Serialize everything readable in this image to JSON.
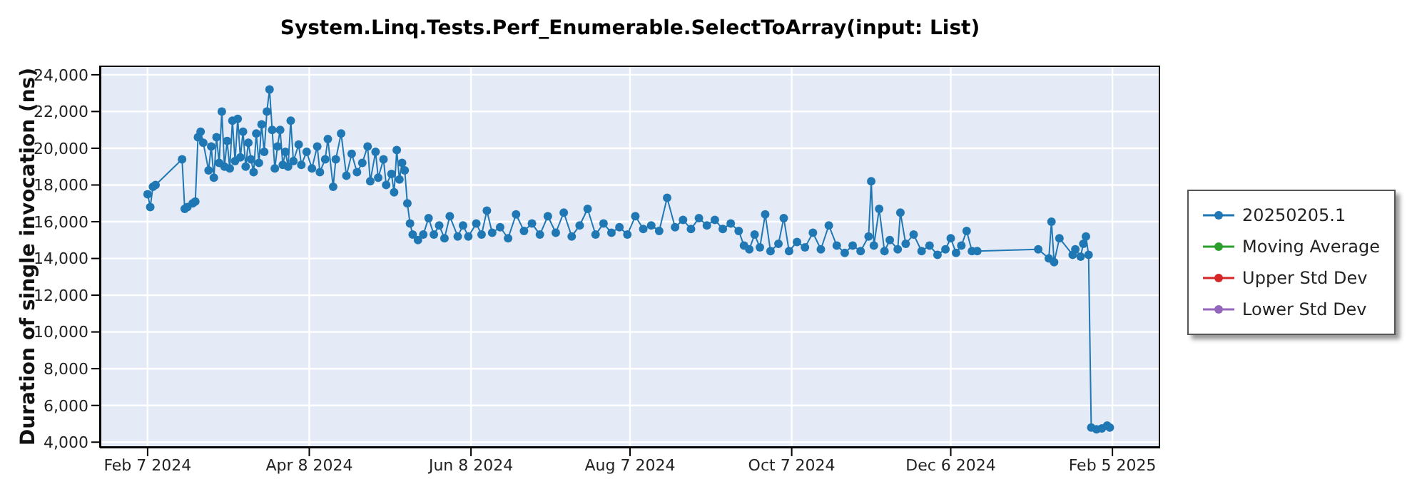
{
  "chart_data": {
    "type": "line",
    "title": "System.Linq.Tests.Perf_Enumerable.SelectToArray(input: List)",
    "ylabel": "Duration of single invocation (ns)",
    "x": [
      "2024-02-07",
      "2024-02-08",
      "2024-02-09",
      "2024-02-10",
      "2024-02-20",
      "2024-02-21",
      "2024-02-22",
      "2024-02-24",
      "2024-02-25",
      "2024-02-26",
      "2024-02-27",
      "2024-02-28",
      "2024-03-01",
      "2024-03-02",
      "2024-03-03",
      "2024-03-04",
      "2024-03-05",
      "2024-03-06",
      "2024-03-07",
      "2024-03-08",
      "2024-03-09",
      "2024-03-10",
      "2024-03-11",
      "2024-03-12",
      "2024-03-13",
      "2024-03-14",
      "2024-03-15",
      "2024-03-16",
      "2024-03-17",
      "2024-03-18",
      "2024-03-19",
      "2024-03-20",
      "2024-03-21",
      "2024-03-22",
      "2024-03-23",
      "2024-03-24",
      "2024-03-25",
      "2024-03-26",
      "2024-03-27",
      "2024-03-28",
      "2024-03-29",
      "2024-03-30",
      "2024-03-31",
      "2024-04-01",
      "2024-04-02",
      "2024-04-04",
      "2024-04-05",
      "2024-04-07",
      "2024-04-09",
      "2024-04-11",
      "2024-04-12",
      "2024-04-14",
      "2024-04-15",
      "2024-04-17",
      "2024-04-18",
      "2024-04-20",
      "2024-04-22",
      "2024-04-24",
      "2024-04-26",
      "2024-04-28",
      "2024-04-30",
      "2024-05-01",
      "2024-05-03",
      "2024-05-04",
      "2024-05-06",
      "2024-05-07",
      "2024-05-09",
      "2024-05-10",
      "2024-05-11",
      "2024-05-12",
      "2024-05-13",
      "2024-05-14",
      "2024-05-15",
      "2024-05-16",
      "2024-05-17",
      "2024-05-19",
      "2024-05-21",
      "2024-05-23",
      "2024-05-25",
      "2024-05-27",
      "2024-05-29",
      "2024-05-31",
      "2024-06-03",
      "2024-06-05",
      "2024-06-07",
      "2024-06-10",
      "2024-06-12",
      "2024-06-14",
      "2024-06-16",
      "2024-06-19",
      "2024-06-22",
      "2024-06-25",
      "2024-06-28",
      "2024-07-01",
      "2024-07-04",
      "2024-07-07",
      "2024-07-10",
      "2024-07-13",
      "2024-07-16",
      "2024-07-19",
      "2024-07-22",
      "2024-07-25",
      "2024-07-28",
      "2024-07-31",
      "2024-08-03",
      "2024-08-06",
      "2024-08-09",
      "2024-08-12",
      "2024-08-15",
      "2024-08-18",
      "2024-08-21",
      "2024-08-24",
      "2024-08-27",
      "2024-08-30",
      "2024-09-02",
      "2024-09-05",
      "2024-09-08",
      "2024-09-11",
      "2024-09-14",
      "2024-09-17",
      "2024-09-19",
      "2024-09-21",
      "2024-09-23",
      "2024-09-25",
      "2024-09-27",
      "2024-09-29",
      "2024-10-02",
      "2024-10-04",
      "2024-10-06",
      "2024-10-09",
      "2024-10-12",
      "2024-10-15",
      "2024-10-18",
      "2024-10-21",
      "2024-10-24",
      "2024-10-27",
      "2024-10-30",
      "2024-11-02",
      "2024-11-05",
      "2024-11-06",
      "2024-11-07",
      "2024-11-09",
      "2024-11-11",
      "2024-11-13",
      "2024-11-16",
      "2024-11-17",
      "2024-11-19",
      "2024-11-22",
      "2024-11-25",
      "2024-11-28",
      "2024-12-01",
      "2024-12-04",
      "2024-12-06",
      "2024-12-08",
      "2024-12-10",
      "2024-12-12",
      "2024-12-14",
      "2024-12-16",
      "2025-01-08",
      "2025-01-12",
      "2025-01-13",
      "2025-01-14",
      "2025-01-16",
      "2025-01-21",
      "2025-01-22",
      "2025-01-24",
      "2025-01-25",
      "2025-01-26",
      "2025-01-27",
      "2025-01-28",
      "2025-01-30",
      "2025-02-01",
      "2025-02-03",
      "2025-02-04"
    ],
    "series": [
      {
        "name": "20250205.1",
        "color": "#1f77b4",
        "values": [
          17500,
          16800,
          17900,
          18000,
          19400,
          16700,
          16800,
          17000,
          17100,
          20600,
          20900,
          20300,
          18800,
          20100,
          18400,
          20600,
          19200,
          22000,
          19000,
          20400,
          18900,
          21500,
          19300,
          21600,
          19500,
          20900,
          19000,
          20300,
          19400,
          18700,
          20800,
          19200,
          21300,
          19800,
          22000,
          23200,
          21000,
          18900,
          20100,
          21000,
          19100,
          19800,
          19000,
          21500,
          19300,
          20200,
          19100,
          19800,
          18900,
          20100,
          18700,
          19400,
          20500,
          17900,
          19400,
          20800,
          18500,
          19700,
          18700,
          19200,
          20100,
          18200,
          19800,
          18400,
          19400,
          18000,
          18600,
          17600,
          19900,
          18300,
          19200,
          18800,
          17000,
          15900,
          15300,
          15000,
          15300,
          16200,
          15300,
          15800,
          15100,
          16300,
          15200,
          15800,
          15200,
          15900,
          15300,
          16600,
          15400,
          15700,
          15100,
          16400,
          15500,
          15900,
          15300,
          16300,
          15400,
          16500,
          15200,
          15800,
          16700,
          15300,
          15900,
          15400,
          15700,
          15300,
          16300,
          15600,
          15800,
          15500,
          17300,
          15700,
          16100,
          15600,
          16200,
          15800,
          16100,
          15600,
          15900,
          15500,
          14700,
          14500,
          15300,
          14600,
          16400,
          14400,
          14800,
          16200,
          14400,
          14900,
          14600,
          15400,
          14500,
          15800,
          14700,
          14300,
          14700,
          14400,
          15200,
          18200,
          14700,
          16700,
          14400,
          15000,
          14500,
          16500,
          14800,
          15300,
          14400,
          14700,
          14200,
          14500,
          15100,
          14300,
          14700,
          15500,
          14400,
          14400,
          14500,
          14000,
          16000,
          13800,
          15100,
          14200,
          14500,
          14100,
          14800,
          15200,
          14200,
          4800,
          4700,
          4750,
          4900,
          4800
        ]
      },
      {
        "name": "Moving Average",
        "color": "#2ca02c",
        "values": [
          null,
          null,
          null,
          null,
          null,
          null,
          null,
          null,
          null,
          null,
          null,
          null,
          null,
          null,
          null,
          null,
          null,
          null,
          null,
          null,
          null,
          null,
          null,
          null,
          null,
          null,
          null,
          null,
          null,
          null,
          null,
          null,
          null,
          null,
          null,
          null,
          null,
          null,
          null,
          null,
          null,
          null,
          null,
          null,
          null,
          null,
          null,
          null,
          null,
          null,
          null,
          null,
          null,
          null,
          null,
          null,
          null,
          null,
          null,
          null,
          null,
          null,
          null,
          null,
          null,
          null,
          null,
          null,
          null,
          null,
          null,
          null,
          null,
          null,
          null,
          null,
          null,
          null,
          null,
          null,
          null,
          null,
          null,
          null,
          null,
          null,
          null,
          null,
          null,
          null,
          null,
          null,
          null,
          null,
          null,
          null,
          null,
          null,
          null,
          null,
          null,
          null,
          null,
          null,
          null,
          null,
          null,
          null,
          null,
          null,
          null,
          null,
          null,
          null,
          null,
          null,
          null,
          null,
          null,
          null,
          null,
          null,
          null,
          null,
          null,
          null,
          null,
          null,
          null,
          null,
          null,
          null,
          null,
          null,
          null,
          null,
          null,
          null,
          null,
          null,
          null,
          null,
          null,
          null,
          null,
          null,
          null,
          null,
          null,
          null,
          null,
          null,
          null,
          null,
          null,
          null,
          null,
          null,
          null,
          null,
          null,
          null,
          null,
          null,
          null,
          null,
          null,
          null,
          null,
          null,
          null,
          null,
          null,
          null
        ]
      },
      {
        "name": "Upper Std Dev",
        "color": "#d62728",
        "values": [
          null,
          null,
          null,
          null,
          null,
          null,
          null,
          null,
          null,
          null,
          null,
          null,
          null,
          null,
          null,
          null,
          null,
          null,
          null,
          null,
          null,
          null,
          null,
          null,
          null,
          null,
          null,
          null,
          null,
          null,
          null,
          null,
          null,
          null,
          null,
          null,
          null,
          null,
          null,
          null,
          null,
          null,
          null,
          null,
          null,
          null,
          null,
          null,
          null,
          null,
          null,
          null,
          null,
          null,
          null,
          null,
          null,
          null,
          null,
          null,
          null,
          null,
          null,
          null,
          null,
          null,
          null,
          null,
          null,
          null,
          null,
          null,
          null,
          null,
          null,
          null,
          null,
          null,
          null,
          null,
          null,
          null,
          null,
          null,
          null,
          null,
          null,
          null,
          null,
          null,
          null,
          null,
          null,
          null,
          null,
          null,
          null,
          null,
          null,
          null,
          null,
          null,
          null,
          null,
          null,
          null,
          null,
          null,
          null,
          null,
          null,
          null,
          null,
          null,
          null,
          null,
          null,
          null,
          null,
          null,
          null,
          null,
          null,
          null,
          null,
          null,
          null,
          null,
          null,
          null,
          null,
          null,
          null,
          null,
          null,
          null,
          null,
          null,
          null,
          null,
          null,
          null,
          null,
          null,
          null,
          null,
          null,
          null,
          null,
          null,
          null,
          null,
          null,
          null,
          null,
          null,
          null,
          null,
          null,
          null,
          null,
          null,
          null,
          null,
          null,
          null,
          null,
          null,
          null,
          null,
          null,
          null,
          null,
          null
        ]
      },
      {
        "name": "Lower Std Dev",
        "color": "#9467bd",
        "values": [
          null,
          null,
          null,
          null,
          null,
          null,
          null,
          null,
          null,
          null,
          null,
          null,
          null,
          null,
          null,
          null,
          null,
          null,
          null,
          null,
          null,
          null,
          null,
          null,
          null,
          null,
          null,
          null,
          null,
          null,
          null,
          null,
          null,
          null,
          null,
          null,
          null,
          null,
          null,
          null,
          null,
          null,
          null,
          null,
          null,
          null,
          null,
          null,
          null,
          null,
          null,
          null,
          null,
          null,
          null,
          null,
          null,
          null,
          null,
          null,
          null,
          null,
          null,
          null,
          null,
          null,
          null,
          null,
          null,
          null,
          null,
          null,
          null,
          null,
          null,
          null,
          null,
          null,
          null,
          null,
          null,
          null,
          null,
          null,
          null,
          null,
          null,
          null,
          null,
          null,
          null,
          null,
          null,
          null,
          null,
          null,
          null,
          null,
          null,
          null,
          null,
          null,
          null,
          null,
          null,
          null,
          null,
          null,
          null,
          null,
          null,
          null,
          null,
          null,
          null,
          null,
          null,
          null,
          null,
          null,
          null,
          null,
          null,
          null,
          null,
          null,
          null,
          null,
          null,
          null,
          null,
          null,
          null,
          null,
          null,
          null,
          null,
          null,
          null,
          null,
          null,
          null,
          null,
          null,
          null,
          null,
          null,
          null,
          null,
          null,
          null,
          null,
          null,
          null,
          null,
          null,
          null,
          null,
          null,
          null,
          null,
          null,
          null,
          null,
          null,
          null,
          null,
          null,
          null,
          null,
          null,
          null,
          null,
          null
        ]
      }
    ],
    "xlim": [
      "2024-01-20",
      "2025-02-23"
    ],
    "xticks": [
      {
        "value": "2024-02-07",
        "label": "Feb 7 2024"
      },
      {
        "value": "2024-04-08",
        "label": "Apr 8 2024"
      },
      {
        "value": "2024-06-08",
        "label": "Jun 8 2024"
      },
      {
        "value": "2024-08-07",
        "label": "Aug 7 2024"
      },
      {
        "value": "2024-10-07",
        "label": "Oct 7 2024"
      },
      {
        "value": "2024-12-06",
        "label": "Dec 6 2024"
      },
      {
        "value": "2025-02-05",
        "label": "Feb 5 2025"
      }
    ],
    "ylim": [
      3700,
      24500
    ],
    "yticks": [
      {
        "value": 4000,
        "label": "4,000"
      },
      {
        "value": 6000,
        "label": "6,000"
      },
      {
        "value": 8000,
        "label": "8,000"
      },
      {
        "value": 10000,
        "label": "10,000"
      },
      {
        "value": 12000,
        "label": "12,000"
      },
      {
        "value": 14000,
        "label": "14,000"
      },
      {
        "value": 16000,
        "label": "16,000"
      },
      {
        "value": 18000,
        "label": "18,000"
      },
      {
        "value": 20000,
        "label": "20,000"
      },
      {
        "value": 22000,
        "label": "22,000"
      },
      {
        "value": 24000,
        "label": "24,000"
      }
    ],
    "grid": true,
    "legend": "right",
    "marker": "circle",
    "line_style": "solid"
  }
}
